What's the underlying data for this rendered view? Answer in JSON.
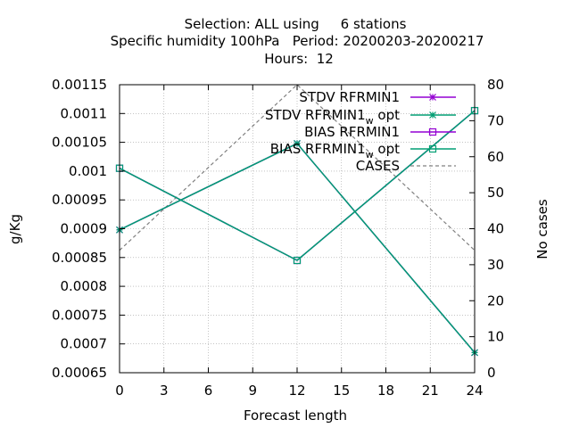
{
  "chart_data": {
    "type": "line",
    "title_lines": [
      "Selection: ALL using     6 stations",
      "Specific humidity 100hPa   Period: 20200203-20200217",
      "Hours:  12"
    ],
    "xlabel": "Forecast length",
    "ylabel": "g/Kg",
    "y2label": "No cases",
    "x_ticks": [
      "0",
      "3",
      "6",
      "9",
      "12",
      "15",
      "18",
      "21",
      "24"
    ],
    "y_ticks": [
      "0.00065",
      "0.0007",
      "0.00075",
      "0.0008",
      "0.00085",
      "0.0009",
      "0.00095",
      "0.001",
      "0.00105",
      "0.0011",
      "0.00115"
    ],
    "y2_ticks": [
      "0",
      "10",
      "20",
      "30",
      "40",
      "50",
      "60",
      "70",
      "80"
    ],
    "xlim": [
      0,
      24
    ],
    "ylim": [
      0.00065,
      0.00115
    ],
    "y2lim": [
      0,
      80
    ],
    "grid": true,
    "legend_position": "top-right",
    "series": [
      {
        "name": "STDV RFRMIN1",
        "axis": "y",
        "color": "#9400d3",
        "marker": "star",
        "x": [
          0,
          12,
          24
        ],
        "values": [
          0.000898,
          0.001048,
          0.000685
        ]
      },
      {
        "name": "STDV RFRMIN1_w opt",
        "axis": "y",
        "color": "#009e73",
        "marker": "star",
        "x": [
          0,
          12,
          24
        ],
        "values": [
          0.000898,
          0.001048,
          0.000685
        ]
      },
      {
        "name": "BIAS RFRMIN1",
        "axis": "y",
        "color": "#9400d3",
        "marker": "square",
        "x": [
          0,
          12,
          24
        ],
        "values": [
          0.001005,
          0.000845,
          0.001105
        ]
      },
      {
        "name": "BIAS RFRMIN1_w opt",
        "axis": "y",
        "color": "#009e73",
        "marker": "square",
        "x": [
          0,
          12,
          24
        ],
        "values": [
          0.001005,
          0.000845,
          0.001105
        ]
      },
      {
        "name": "CASES",
        "axis": "y2",
        "color": "#808080",
        "dashed": true,
        "marker": "none",
        "x": [
          0,
          12,
          24
        ],
        "values": [
          34,
          80,
          34
        ]
      }
    ]
  }
}
